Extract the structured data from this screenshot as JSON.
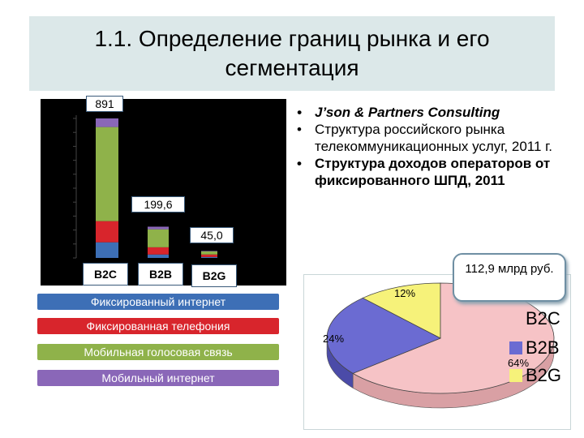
{
  "title": "1.1. Определение границ рынка и его сегментация",
  "bullets": [
    "J’son & Partners Consulting",
    "Структура российского рынка телекоммуникационных услуг, 2011 г.",
    "Структура доходов операторов от фиксированного ШПД, 2011"
  ],
  "colors": {
    "fixed_internet": "#3d6fb6",
    "fixed_telephony": "#d8252c",
    "mobile_voice": "#8fb24a",
    "mobile_internet": "#8a67b8",
    "b2c_slice": "#f6c3c6",
    "b2b_slice": "#6b6bd2",
    "b2g_slice": "#f6f27a"
  },
  "chart_data": [
    {
      "type": "bar",
      "stacked": true,
      "categories": [
        "B2C",
        "B2B",
        "B2G"
      ],
      "totals": [
        891,
        199.6,
        45.0
      ],
      "total_labels": [
        "891",
        "199,6",
        "45,0"
      ],
      "series": [
        {
          "name": "Фиксированный интернет",
          "values": [
            100,
            22,
            6
          ]
        },
        {
          "name": "Фиксированная телефония",
          "values": [
            135,
            46,
            16
          ]
        },
        {
          "name": "Мобильная голосовая связь",
          "values": [
            601,
            115,
            20
          ]
        },
        {
          "name": "Мобильный интернет",
          "values": [
            55,
            16.6,
            3
          ]
        }
      ],
      "ylim": [
        0,
        891
      ],
      "legend_position": "bottom"
    },
    {
      "type": "pie",
      "labels": [
        "B2C",
        "B2B",
        "B2G"
      ],
      "values": [
        64,
        24,
        12
      ],
      "value_labels": [
        "64%",
        "24%",
        "12%"
      ],
      "total_note": "112,9 млрд руб.",
      "legend_position": "right"
    }
  ]
}
